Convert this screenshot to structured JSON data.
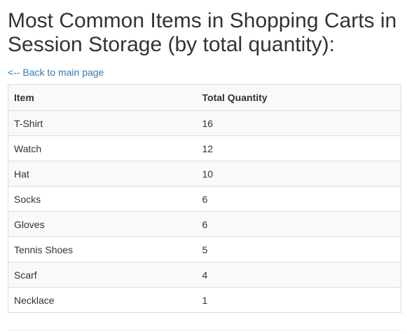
{
  "page": {
    "title": "Most Common Items in Shopping Carts in Session Storage (by total quantity):",
    "back_link": "<-- Back to main page"
  },
  "table": {
    "headers": {
      "item": "Item",
      "quantity": "Total Quantity"
    },
    "rows": [
      {
        "item": "T-Shirt",
        "quantity": "16"
      },
      {
        "item": "Watch",
        "quantity": "12"
      },
      {
        "item": "Hat",
        "quantity": "10"
      },
      {
        "item": "Socks",
        "quantity": "6"
      },
      {
        "item": "Gloves",
        "quantity": "6"
      },
      {
        "item": "Tennis Shoes",
        "quantity": "5"
      },
      {
        "item": "Scarf",
        "quantity": "4"
      },
      {
        "item": "Necklace",
        "quantity": "1"
      }
    ]
  },
  "colors": {
    "link": "#337ab7",
    "text": "#333333",
    "border": "#dddddd",
    "stripe": "#f9f9f9"
  }
}
